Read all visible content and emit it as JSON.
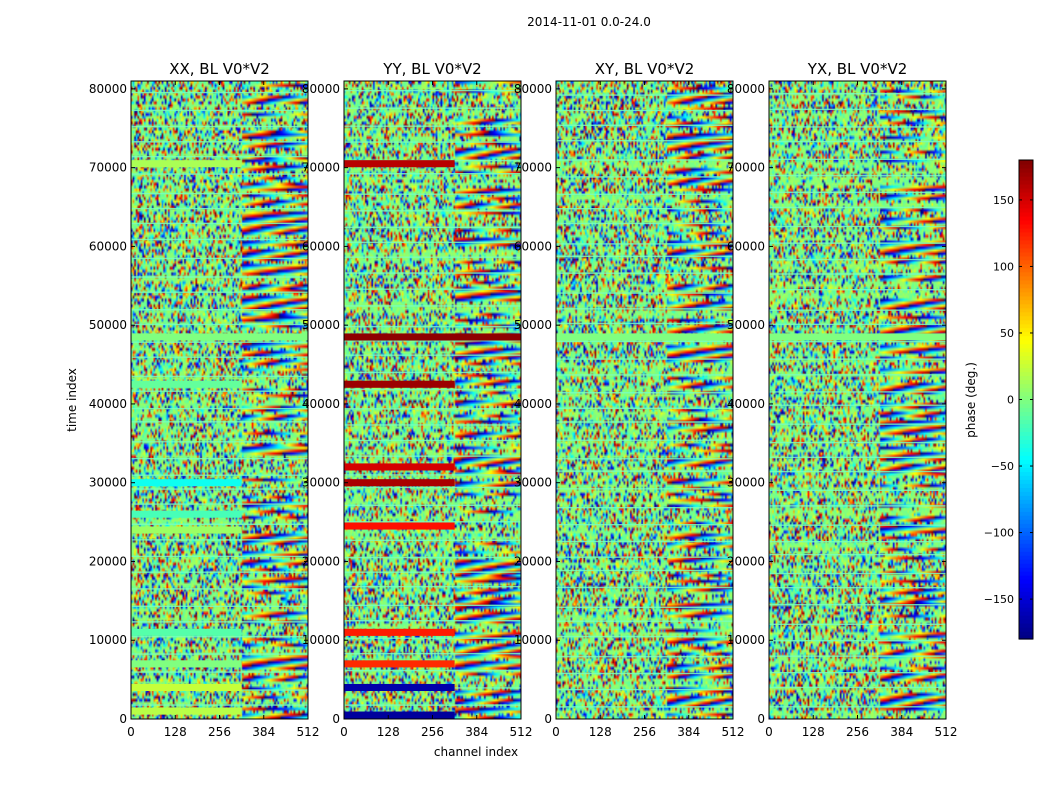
{
  "figure_title": "2014-11-01 0.0-24.0",
  "chart_data": {
    "type": "heatmap",
    "suptitle": "2014-11-01 0.0-24.0",
    "xlabel": "channel index",
    "ylabel": "time index",
    "xlim": [
      0,
      512
    ],
    "ylim": [
      0,
      81000
    ],
    "xticks": [
      0,
      128,
      256,
      384,
      512
    ],
    "yticks": [
      0,
      10000,
      20000,
      30000,
      40000,
      50000,
      60000,
      70000,
      80000
    ],
    "colormap": "jet",
    "panels": [
      {
        "title": "XX, BL V0*V2",
        "bands": [
          {
            "y": 1000,
            "x_end": 320,
            "phase": 20
          },
          {
            "y": 4000,
            "x_end": 320,
            "phase": 25
          },
          {
            "y": 7000,
            "x_end": 320,
            "phase": 0
          },
          {
            "y": 11000,
            "x_end": 320,
            "phase": -15
          },
          {
            "y": 24000,
            "x_end": 320,
            "phase": 10
          },
          {
            "y": 26000,
            "x_end": 320,
            "phase": -20
          },
          {
            "y": 30000,
            "x_end": 320,
            "phase": -40
          },
          {
            "y": 42500,
            "x_end": 320,
            "phase": -10
          },
          {
            "y": 48500,
            "x_end": 512,
            "phase": 0
          },
          {
            "y": 70500,
            "x_end": 320,
            "phase": 15
          }
        ]
      },
      {
        "title": "YY, BL V0*V2",
        "bands": [
          {
            "y": 500,
            "x_end": 320,
            "phase": -170
          },
          {
            "y": 4000,
            "x_end": 320,
            "phase": -165
          },
          {
            "y": 7000,
            "x_end": 320,
            "phase": 120
          },
          {
            "y": 11000,
            "x_end": 320,
            "phase": 125
          },
          {
            "y": 24500,
            "x_end": 320,
            "phase": 130
          },
          {
            "y": 30000,
            "x_end": 320,
            "phase": 165
          },
          {
            "y": 32000,
            "x_end": 320,
            "phase": 150
          },
          {
            "y": 42500,
            "x_end": 320,
            "phase": 170
          },
          {
            "y": 48500,
            "x_end": 512,
            "phase": 175
          },
          {
            "y": 70500,
            "x_end": 320,
            "phase": 160
          }
        ]
      },
      {
        "title": "XY, BL V0*V2",
        "bands": [
          {
            "y": 48500,
            "x_end": 512,
            "phase": 0
          }
        ]
      },
      {
        "title": "YX, BL V0*V2",
        "bands": [
          {
            "y": 48500,
            "x_end": 512,
            "phase": 0
          }
        ]
      }
    ],
    "colorbar": {
      "label": "phase (deg.)",
      "range": [
        -180,
        180
      ],
      "ticks": [
        -150,
        -100,
        -50,
        0,
        50,
        100,
        150
      ],
      "tick_labels": [
        "−150",
        "−100",
        "−50",
        "0",
        "50",
        "100",
        "150"
      ]
    }
  }
}
